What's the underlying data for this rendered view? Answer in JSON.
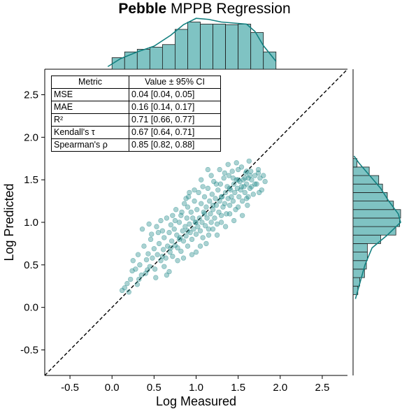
{
  "title": {
    "bold": "Pebble",
    "rest": " MPPB Regression"
  },
  "colors": {
    "marker": "#1f8a8a",
    "hist_fill": "#7fc3c3",
    "hist_edge": "#1a1a1a",
    "kde": "#138080",
    "diagonal": "#000000"
  },
  "chart_data": {
    "type": "scatter",
    "xlabel": "Log Measured",
    "ylabel": "Log Predicted",
    "xlim": [
      -0.8,
      2.8
    ],
    "ylim": [
      -0.8,
      2.8
    ],
    "xticks": [
      -0.5,
      0.0,
      0.5,
      1.0,
      1.5,
      2.0,
      2.5
    ],
    "yticks": [
      -0.5,
      0.0,
      0.5,
      1.0,
      1.5,
      2.0,
      2.5
    ],
    "diagonal_line": "y = x (dashed)",
    "grid": false,
    "points": [
      [
        0.12,
        0.2
      ],
      [
        0.15,
        0.23
      ],
      [
        0.18,
        0.28
      ],
      [
        0.22,
        0.33
      ],
      [
        0.25,
        0.55
      ],
      [
        0.28,
        0.45
      ],
      [
        0.3,
        0.27
      ],
      [
        0.31,
        0.62
      ],
      [
        0.33,
        0.5
      ],
      [
        0.35,
        0.38
      ],
      [
        0.38,
        0.72
      ],
      [
        0.4,
        0.4
      ],
      [
        0.41,
        0.56
      ],
      [
        0.43,
        0.63
      ],
      [
        0.45,
        0.48
      ],
      [
        0.46,
        0.8
      ],
      [
        0.48,
        0.58
      ],
      [
        0.5,
        0.69
      ],
      [
        0.51,
        0.45
      ],
      [
        0.53,
        0.95
      ],
      [
        0.54,
        0.62
      ],
      [
        0.56,
        0.75
      ],
      [
        0.58,
        0.55
      ],
      [
        0.6,
        0.9
      ],
      [
        0.61,
        0.68
      ],
      [
        0.62,
        0.82
      ],
      [
        0.64,
        0.58
      ],
      [
        0.65,
        1.05
      ],
      [
        0.66,
        0.72
      ],
      [
        0.68,
        0.88
      ],
      [
        0.69,
        0.65
      ],
      [
        0.7,
        0.97
      ],
      [
        0.71,
        0.78
      ],
      [
        0.72,
        0.6
      ],
      [
        0.74,
        0.92
      ],
      [
        0.75,
        0.73
      ],
      [
        0.76,
        1.15
      ],
      [
        0.77,
        0.85
      ],
      [
        0.78,
        0.7
      ],
      [
        0.8,
        1.0
      ],
      [
        0.81,
        0.82
      ],
      [
        0.82,
        0.66
      ],
      [
        0.83,
        1.12
      ],
      [
        0.84,
        0.9
      ],
      [
        0.85,
        0.78
      ],
      [
        0.86,
        1.22
      ],
      [
        0.87,
        0.95
      ],
      [
        0.88,
        0.84
      ],
      [
        0.89,
        1.05
      ],
      [
        0.9,
        0.72
      ],
      [
        0.91,
        1.3
      ],
      [
        0.92,
        0.98
      ],
      [
        0.93,
        0.88
      ],
      [
        0.94,
        1.12
      ],
      [
        0.95,
        0.8
      ],
      [
        0.96,
        1.05
      ],
      [
        0.97,
        0.92
      ],
      [
        0.98,
        1.25
      ],
      [
        0.99,
        1.0
      ],
      [
        1.0,
        0.86
      ],
      [
        1.01,
        1.15
      ],
      [
        1.02,
        0.95
      ],
      [
        1.03,
        1.35
      ],
      [
        1.04,
        1.05
      ],
      [
        1.05,
        0.9
      ],
      [
        1.06,
        1.22
      ],
      [
        1.07,
        1.0
      ],
      [
        1.08,
        0.82
      ],
      [
        1.09,
        1.12
      ],
      [
        1.1,
        1.3
      ],
      [
        1.11,
        0.96
      ],
      [
        1.12,
        1.18
      ],
      [
        1.13,
        1.05
      ],
      [
        1.14,
        1.4
      ],
      [
        1.15,
        0.92
      ],
      [
        1.16,
        1.25
      ],
      [
        1.17,
        1.1
      ],
      [
        1.18,
        1.0
      ],
      [
        1.19,
        1.33
      ],
      [
        1.2,
        1.15
      ],
      [
        1.21,
        1.48
      ],
      [
        1.22,
        1.05
      ],
      [
        1.23,
        1.28
      ],
      [
        1.24,
        1.2
      ],
      [
        1.25,
        0.98
      ],
      [
        1.26,
        1.38
      ],
      [
        1.27,
        1.12
      ],
      [
        1.28,
        1.25
      ],
      [
        1.29,
        1.45
      ],
      [
        1.3,
        1.08
      ],
      [
        1.31,
        1.3
      ],
      [
        1.32,
        1.18
      ],
      [
        1.33,
        1.52
      ],
      [
        1.34,
        1.22
      ],
      [
        1.35,
        1.35
      ],
      [
        1.36,
        1.1
      ],
      [
        1.37,
        1.42
      ],
      [
        1.38,
        1.28
      ],
      [
        1.39,
        1.55
      ],
      [
        1.4,
        1.2
      ],
      [
        1.41,
        1.38
      ],
      [
        1.42,
        1.3
      ],
      [
        1.43,
        1.6
      ],
      [
        1.44,
        1.25
      ],
      [
        1.45,
        1.45
      ],
      [
        1.46,
        1.35
      ],
      [
        1.47,
        1.15
      ],
      [
        1.48,
        1.5
      ],
      [
        1.49,
        1.4
      ],
      [
        1.5,
        1.62
      ],
      [
        1.51,
        1.3
      ],
      [
        1.52,
        1.48
      ],
      [
        1.53,
        1.38
      ],
      [
        1.54,
        1.65
      ],
      [
        1.55,
        1.25
      ],
      [
        1.56,
        1.5
      ],
      [
        1.57,
        1.42
      ],
      [
        1.58,
        1.35
      ],
      [
        1.59,
        1.58
      ],
      [
        1.6,
        1.45
      ],
      [
        1.61,
        1.2
      ],
      [
        1.62,
        1.52
      ],
      [
        1.63,
        1.72
      ],
      [
        1.64,
        1.4
      ],
      [
        1.65,
        1.6
      ],
      [
        1.66,
        1.5
      ],
      [
        1.68,
        1.33
      ],
      [
        1.7,
        1.55
      ],
      [
        1.72,
        1.45
      ],
      [
        1.74,
        1.62
      ],
      [
        1.76,
        1.52
      ],
      [
        1.78,
        1.38
      ],
      [
        1.8,
        1.55
      ],
      [
        1.82,
        1.48
      ],
      [
        0.36,
        0.92
      ],
      [
        0.44,
        0.98
      ],
      [
        0.58,
        1.02
      ],
      [
        0.72,
        1.08
      ],
      [
        0.85,
        0.58
      ],
      [
        0.95,
        0.62
      ],
      [
        1.05,
        0.72
      ],
      [
        1.15,
        0.85
      ],
      [
        1.25,
        0.85
      ],
      [
        1.35,
        0.95
      ],
      [
        1.45,
        1.02
      ],
      [
        1.55,
        1.08
      ],
      [
        0.62,
        0.48
      ],
      [
        0.52,
        0.35
      ],
      [
        0.68,
        0.42
      ],
      [
        0.78,
        0.55
      ],
      [
        1.0,
        0.65
      ],
      [
        1.12,
        0.75
      ],
      [
        0.24,
        0.43
      ],
      [
        0.47,
        0.86
      ],
      [
        0.55,
        0.88
      ],
      [
        0.65,
        0.38
      ],
      [
        0.75,
        1.02
      ],
      [
        0.82,
        1.08
      ],
      [
        0.9,
        1.18
      ],
      [
        1.08,
        1.42
      ],
      [
        1.18,
        1.55
      ],
      [
        1.28,
        1.62
      ],
      [
        1.38,
        1.68
      ],
      [
        1.48,
        1.7
      ],
      [
        1.58,
        1.52
      ],
      [
        1.62,
        1.3
      ],
      [
        1.7,
        1.45
      ],
      [
        1.75,
        1.35
      ],
      [
        1.2,
        0.92
      ],
      [
        1.3,
        1.0
      ],
      [
        1.4,
        1.1
      ],
      [
        1.5,
        1.18
      ],
      [
        1.6,
        1.28
      ],
      [
        0.98,
        1.38
      ],
      [
        1.06,
        1.5
      ],
      [
        0.88,
        1.28
      ],
      [
        0.92,
        1.35
      ],
      [
        1.14,
        1.62
      ],
      [
        1.24,
        1.45
      ],
      [
        1.34,
        1.58
      ],
      [
        1.44,
        1.52
      ],
      [
        1.54,
        1.42
      ],
      [
        1.64,
        1.55
      ],
      [
        1.74,
        1.58
      ],
      [
        0.2,
        0.18
      ],
      [
        0.32,
        0.33
      ],
      [
        0.42,
        0.44
      ],
      [
        0.6,
        0.6
      ],
      [
        0.7,
        0.7
      ],
      [
        0.8,
        0.8
      ],
      [
        0.9,
        0.9
      ],
      [
        1.0,
        1.0
      ],
      [
        1.1,
        1.1
      ],
      [
        1.2,
        1.2
      ],
      [
        1.3,
        1.3
      ],
      [
        1.4,
        1.4
      ],
      [
        1.5,
        1.5
      ],
      [
        1.6,
        1.6
      ],
      [
        1.66,
        1.42
      ]
    ],
    "x_histogram": {
      "bin_edges": [
        0.0,
        0.15,
        0.3,
        0.45,
        0.6,
        0.75,
        0.9,
        1.05,
        1.2,
        1.35,
        1.5,
        1.65,
        1.8,
        1.95
      ],
      "heights": [
        0.22,
        0.33,
        0.38,
        0.42,
        0.47,
        0.76,
        0.9,
        0.86,
        0.86,
        0.85,
        0.86,
        0.7,
        0.33
      ],
      "kde": [
        [
          -0.05,
          0.05
        ],
        [
          0.1,
          0.2
        ],
        [
          0.3,
          0.33
        ],
        [
          0.5,
          0.44
        ],
        [
          0.7,
          0.65
        ],
        [
          0.85,
          0.85
        ],
        [
          1.0,
          0.97
        ],
        [
          1.15,
          0.95
        ],
        [
          1.3,
          0.9
        ],
        [
          1.45,
          0.88
        ],
        [
          1.6,
          0.86
        ],
        [
          1.7,
          0.72
        ],
        [
          1.8,
          0.45
        ],
        [
          1.95,
          0.15
        ]
      ]
    },
    "y_histogram": {
      "bin_edges": [
        0.15,
        0.25,
        0.35,
        0.45,
        0.55,
        0.65,
        0.75,
        0.85,
        0.95,
        1.05,
        1.15,
        1.25,
        1.35,
        1.45,
        1.55,
        1.65,
        1.75
      ],
      "heights": [
        0.1,
        0.14,
        0.24,
        0.28,
        0.3,
        0.3,
        0.58,
        0.9,
        0.98,
        1.0,
        0.85,
        0.72,
        0.62,
        0.54,
        0.34,
        0.08
      ],
      "kde": [
        [
          0.1,
          0.05
        ],
        [
          0.3,
          0.15
        ],
        [
          0.5,
          0.25
        ],
        [
          0.7,
          0.4
        ],
        [
          0.85,
          0.72
        ],
        [
          1.0,
          1.0
        ],
        [
          1.1,
          0.95
        ],
        [
          1.25,
          0.75
        ],
        [
          1.4,
          0.58
        ],
        [
          1.55,
          0.35
        ],
        [
          1.7,
          0.12
        ],
        [
          1.78,
          0.02
        ]
      ]
    }
  },
  "metrics_table": {
    "headers": [
      "Metric",
      "Value ± 95% CI"
    ],
    "rows": [
      {
        "metric": "MSE",
        "value": "0.04 [0.04, 0.05]"
      },
      {
        "metric": "MAE",
        "value": "0.16 [0.14, 0.17]"
      },
      {
        "metric": "R²",
        "value": "0.71 [0.66, 0.77]"
      },
      {
        "metric": "Kendall's τ",
        "value": "0.67 [0.64, 0.71]"
      },
      {
        "metric": "Spearman's ρ",
        "value": "0.85 [0.82, 0.88]"
      }
    ]
  }
}
